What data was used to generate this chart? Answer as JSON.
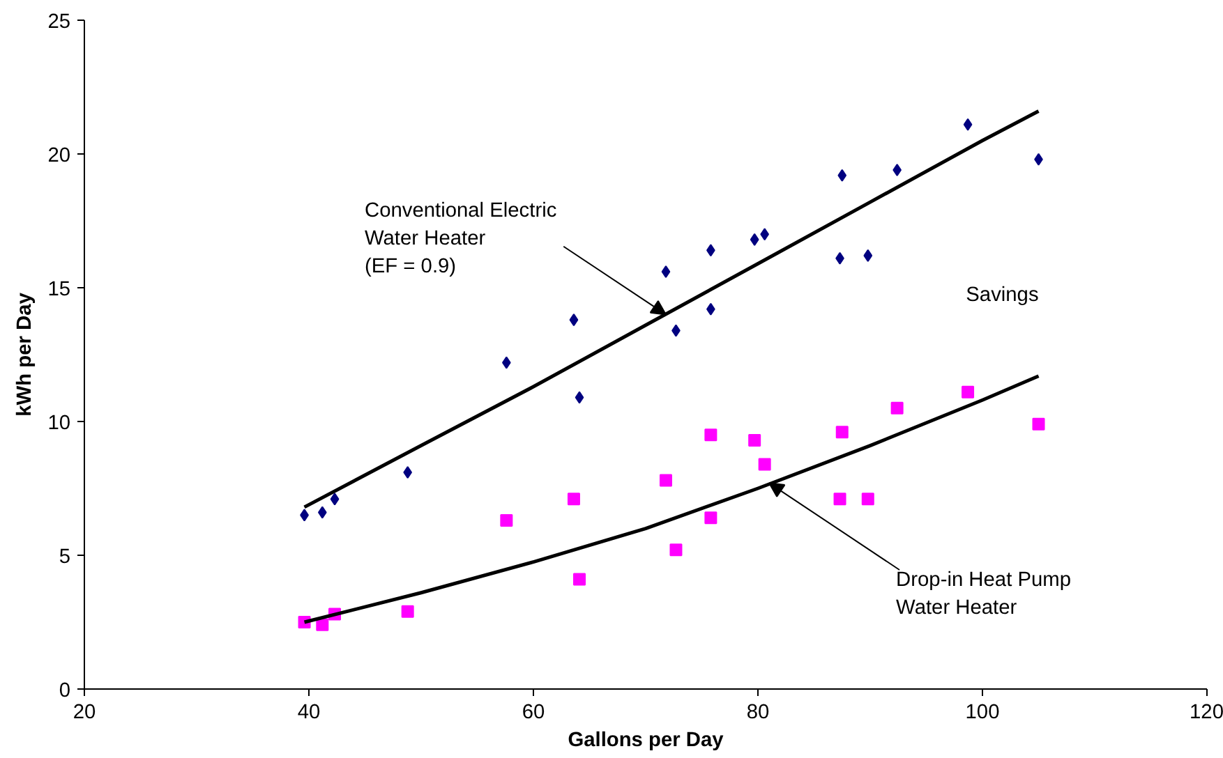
{
  "chart_data": {
    "type": "scatter",
    "xlabel": "Gallons per Day",
    "ylabel": "kWh per Day",
    "xlim": [
      20,
      120
    ],
    "ylim": [
      0,
      25
    ],
    "xticks": [
      20,
      40,
      60,
      80,
      100,
      120
    ],
    "yticks": [
      0,
      5,
      10,
      15,
      20,
      25
    ],
    "grid": false,
    "series": [
      {
        "marker": "diamond",
        "color": "#000080",
        "x": [
          39.6,
          41.2,
          42.3,
          48.8,
          57.6,
          63.6,
          64.1,
          71.8,
          72.7,
          75.8,
          75.8,
          79.7,
          80.6,
          87.3,
          87.5,
          89.8,
          92.4,
          98.7,
          105
        ],
        "values": [
          6.5,
          6.6,
          7.1,
          8.1,
          12.2,
          13.8,
          10.9,
          15.6,
          13.4,
          16.4,
          14.2,
          16.8,
          17.0,
          16.1,
          19.2,
          16.2,
          19.4,
          21.1,
          19.8
        ]
      },
      {
        "marker": "square",
        "color": "#ff00ff",
        "x": [
          39.6,
          41.2,
          42.3,
          48.8,
          57.6,
          63.6,
          64.1,
          71.8,
          72.7,
          75.8,
          75.8,
          79.7,
          80.6,
          87.3,
          87.5,
          89.8,
          92.4,
          98.7,
          105
        ],
        "values": [
          2.5,
          2.4,
          2.8,
          2.9,
          6.3,
          7.1,
          4.1,
          7.8,
          5.2,
          9.5,
          6.4,
          9.3,
          8.4,
          7.1,
          9.6,
          7.1,
          10.5,
          11.1,
          9.9
        ]
      },
      {
        "type": "line",
        "color": "#000000",
        "x": [
          39.6,
          50,
          60,
          70,
          80,
          90,
          100,
          105
        ],
        "values": [
          6.8,
          9.1,
          11.3,
          13.6,
          15.9,
          18.2,
          20.5,
          21.6
        ]
      },
      {
        "type": "line",
        "color": "#000000",
        "x": [
          39.6,
          50,
          60,
          70,
          80,
          90,
          100,
          105
        ],
        "values": [
          2.5,
          3.6,
          4.75,
          6.0,
          7.5,
          9.1,
          10.8,
          11.7
        ]
      }
    ],
    "annotations": [
      {
        "text": "Conventional Electric\nWater Heater\n(EF = 0.9)",
        "x": 71.8,
        "y": 14.0
      },
      {
        "text": "Drop-in Heat Pump\nWater Heater",
        "x": 81.0,
        "y": 7.7
      },
      "Savings"
    ]
  }
}
